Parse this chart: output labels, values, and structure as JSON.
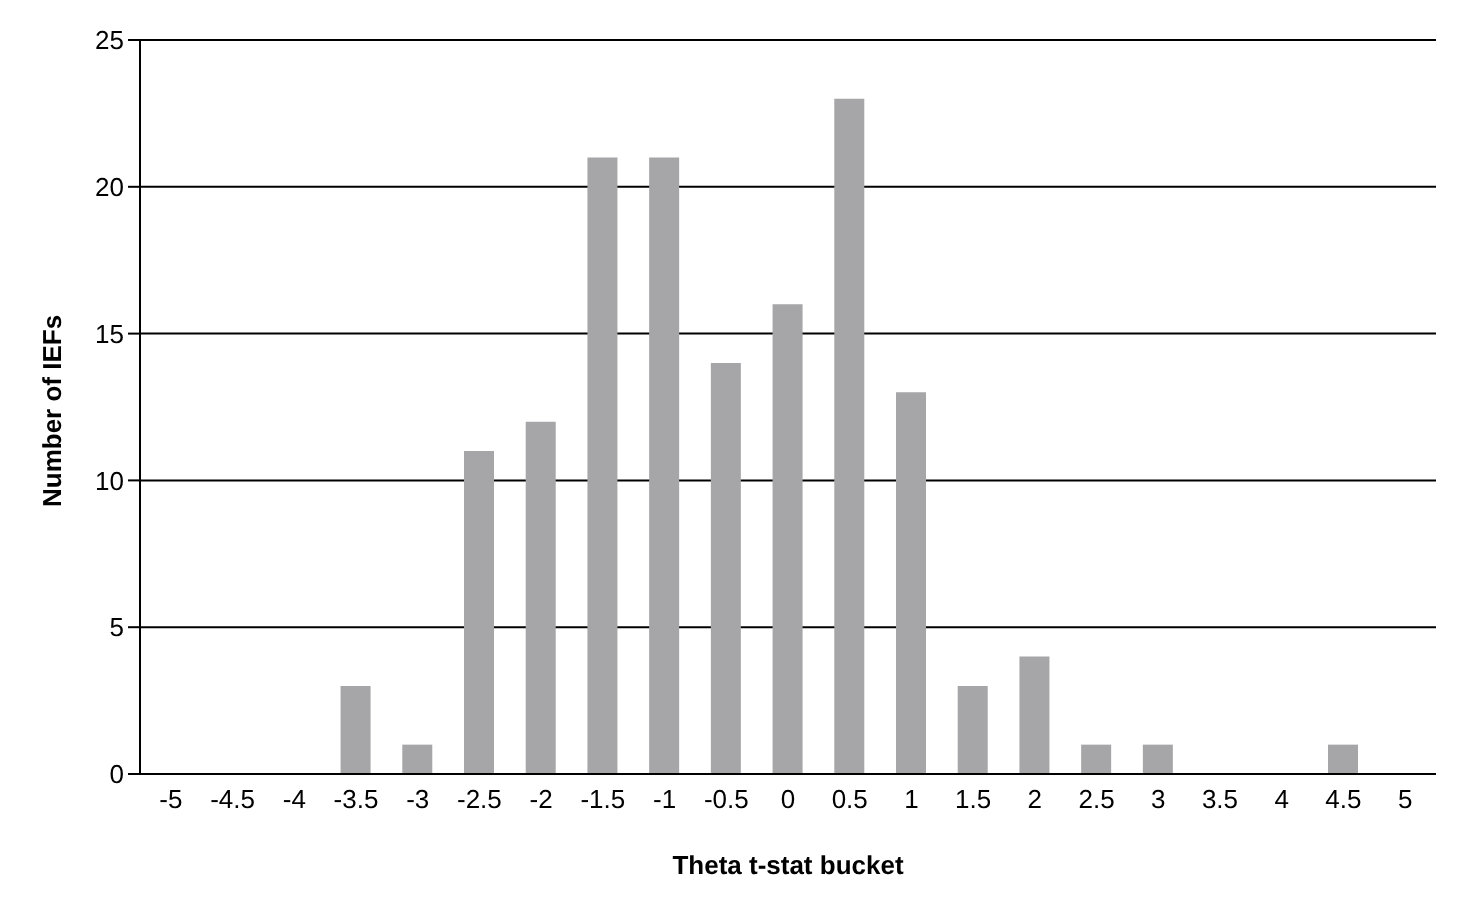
{
  "chart_data": {
    "type": "bar",
    "xlabel": "Theta t-stat bucket",
    "ylabel": "Number of IEFs",
    "categories": [
      "-5",
      "-4.5",
      "-4",
      "-3.5",
      "-3",
      "-2.5",
      "-2",
      "-1.5",
      "-1",
      "-0.5",
      "0",
      "0.5",
      "1",
      "1.5",
      "2",
      "2.5",
      "3",
      "3.5",
      "4",
      "4.5",
      "5"
    ],
    "values": [
      0,
      0,
      0,
      3,
      1,
      11,
      12,
      21,
      21,
      14,
      16,
      23,
      13,
      3,
      4,
      1,
      1,
      0,
      0,
      1,
      0
    ],
    "color": "#a6a6a8",
    "ylim": [
      0,
      25
    ],
    "yticks": [
      0,
      5,
      10,
      15,
      20,
      25
    ],
    "grid": "y",
    "legend": false
  }
}
